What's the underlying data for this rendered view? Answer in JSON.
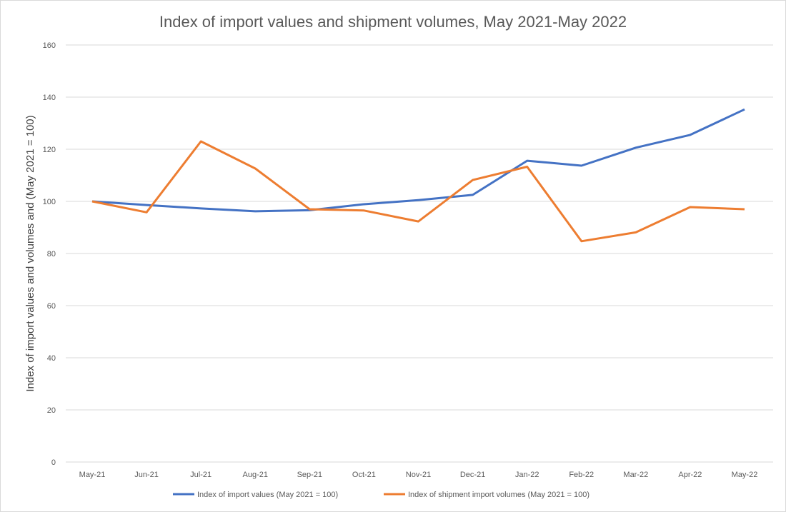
{
  "chart_data": {
    "type": "line",
    "title": "Index of import values and shipment volumes, May 2021-May 2022",
    "xlabel": "",
    "ylabel": "Index of  import values and volumes and (May 2021 = 100)",
    "ylim": [
      0,
      160
    ],
    "yticks": [
      0,
      20,
      40,
      60,
      80,
      100,
      120,
      140,
      160
    ],
    "grid": true,
    "legend_position": "bottom",
    "categories": [
      "May-21",
      "Jun-21",
      "Jul-21",
      "Aug-21",
      "Sep-21",
      "Oct-21",
      "Nov-21",
      "Dec-21",
      "Jan-22",
      "Feb-22",
      "Mar-22",
      "Apr-22",
      "May-22"
    ],
    "series": [
      {
        "name": "Index of import values (May 2021 = 100)",
        "color": "#4472C4",
        "values": [
          100,
          98.6,
          97.3,
          96.2,
          96.6,
          98.9,
          100.5,
          102.5,
          115.6,
          113.7,
          120.6,
          125.5,
          135.3
        ]
      },
      {
        "name": "Index of shipment import volumes (May 2021 = 100)",
        "color": "#ED7D31",
        "values": [
          100,
          95.8,
          123,
          112.6,
          97,
          96.5,
          92.3,
          108.2,
          113.3,
          84.7,
          88.1,
          97.8,
          97
        ]
      }
    ]
  }
}
